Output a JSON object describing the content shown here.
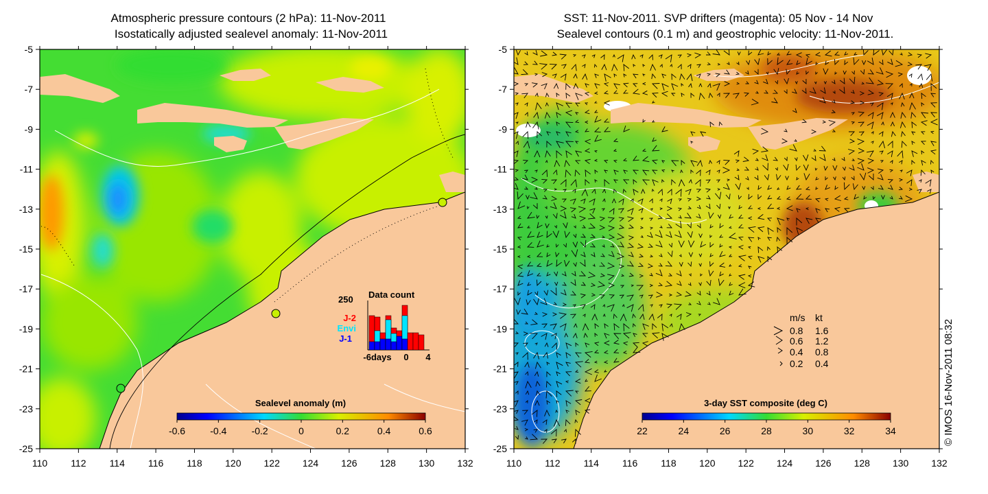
{
  "left_panel": {
    "title_line1": "Atmospheric pressure contours (2 hPa): 11-Nov-2011",
    "title_line2": "Isostatically adjusted sealevel anomaly: 11-Nov-2011",
    "x_ticks": [
      "110",
      "112",
      "114",
      "116",
      "118",
      "120",
      "122",
      "124",
      "126",
      "128",
      "130",
      "132"
    ],
    "y_ticks": [
      "-5",
      "-7",
      "-9",
      "-11",
      "-13",
      "-15",
      "-17",
      "-19",
      "-21",
      "-23",
      "-25"
    ],
    "colorbar": {
      "title": "Sealevel anomaly (m)",
      "ticks": [
        "-0.6",
        "-0.4",
        "-0.2",
        "0",
        "0.2",
        "0.4",
        "0.6"
      ]
    },
    "data_count": {
      "title": "Data count",
      "ymax_label": "250",
      "x_labels": [
        "-6days",
        "0",
        "4"
      ],
      "series": [
        {
          "name": "J-2",
          "color": "#ff0000"
        },
        {
          "name": "Envi",
          "color": "#00e5ff"
        },
        {
          "name": "J-1",
          "color": "#0000ff"
        }
      ]
    }
  },
  "right_panel": {
    "title_line1": "SST: 11-Nov-2011. SVP drifters (magenta): 05 Nov - 14 Nov",
    "title_line2": "Sealevel contours (0.1 m) and geostrophic velocity: 11-Nov-2011.",
    "x_ticks": [
      "110",
      "112",
      "114",
      "116",
      "118",
      "120",
      "122",
      "124",
      "126",
      "128",
      "130",
      "132"
    ],
    "y_ticks": [
      "-5",
      "-7",
      "-9",
      "-11",
      "-13",
      "-15",
      "-17",
      "-19",
      "-21",
      "-23",
      "-25"
    ],
    "colorbar": {
      "title": "3-day SST composite (deg C)",
      "ticks": [
        "22",
        "24",
        "26",
        "28",
        "30",
        "32",
        "34"
      ]
    },
    "velocity_key": {
      "header_ms": "m/s",
      "header_kt": "kt",
      "rows": [
        {
          "ms": "0.8",
          "kt": "1.6"
        },
        {
          "ms": "0.6",
          "kt": "1.2"
        },
        {
          "ms": "0.4",
          "kt": "0.8"
        },
        {
          "ms": "0.2",
          "kt": "0.4"
        }
      ]
    }
  },
  "credit": "© IMOS 16-Nov-2011 08:32",
  "colors": {
    "land": "#f9c89b",
    "sla_bg": "#44dd33",
    "sst_bg": "#e8c81a"
  }
}
